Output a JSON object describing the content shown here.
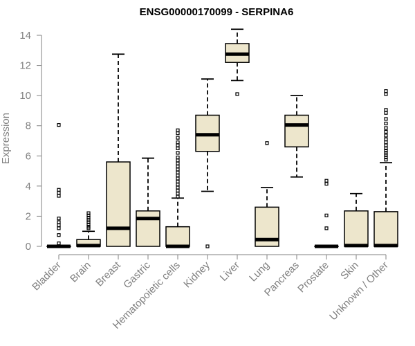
{
  "chart_data": {
    "type": "boxplot",
    "title": "ENSG00000170099 - SERPINA6",
    "xlabel": "",
    "ylabel": "Expression",
    "ylim": [
      0,
      14.5
    ],
    "yticks": [
      0,
      2,
      4,
      6,
      8,
      10,
      12,
      14
    ],
    "box_color": "#ede6cc",
    "categories": [
      "Bladder",
      "Brain",
      "Breast",
      "Gastric",
      "Hematopoietic cells",
      "Kidney",
      "Liver",
      "Lung",
      "Pancreas",
      "Prostate",
      "Skin",
      "Unknown / Other"
    ],
    "boxes": [
      {
        "name": "Bladder",
        "min": 0,
        "q1": 0,
        "median": 0,
        "q3": 0,
        "max": 0,
        "outliers": [
          8.05,
          3.75,
          3.55,
          3.35,
          1.85,
          1.6,
          1.4,
          1.2,
          0.75,
          0.2
        ]
      },
      {
        "name": "Brain",
        "min": 0,
        "q1": 0,
        "median": 0.05,
        "q3": 0.45,
        "max": 1.0,
        "outliers": [
          2.2,
          2.05,
          1.9,
          1.75,
          1.6,
          1.45,
          1.3,
          1.2
        ]
      },
      {
        "name": "Breast",
        "min": 0,
        "q1": 0,
        "median": 1.2,
        "q3": 5.6,
        "max": 12.75,
        "outliers": []
      },
      {
        "name": "Gastric",
        "min": 0,
        "q1": 0,
        "median": 1.85,
        "q3": 2.35,
        "max": 5.85,
        "outliers": []
      },
      {
        "name": "Hematopoietic cells",
        "min": 0,
        "q1": 0,
        "median": 0,
        "q3": 1.3,
        "max": 3.2,
        "outliers": [
          7.7,
          7.5,
          7.2,
          6.9,
          6.7,
          6.5,
          6.2,
          5.9,
          5.7,
          5.5,
          5.3,
          5.1,
          4.9,
          4.7,
          4.5,
          4.3,
          4.1,
          3.9,
          3.7,
          3.5,
          3.3
        ]
      },
      {
        "name": "Kidney",
        "min": 3.65,
        "q1": 6.3,
        "median": 7.4,
        "q3": 8.7,
        "max": 11.1,
        "outliers": [
          0
        ]
      },
      {
        "name": "Liver",
        "min": 11.0,
        "q1": 12.2,
        "median": 12.75,
        "q3": 13.45,
        "max": 14.4,
        "outliers": [
          10.1
        ]
      },
      {
        "name": "Lung",
        "min": 0,
        "q1": 0,
        "median": 0.45,
        "q3": 2.6,
        "max": 3.9,
        "outliers": [
          6.85
        ]
      },
      {
        "name": "Pancreas",
        "min": 4.6,
        "q1": 6.6,
        "median": 8.05,
        "q3": 8.7,
        "max": 10.0,
        "outliers": []
      },
      {
        "name": "Prostate",
        "min": 0,
        "q1": 0,
        "median": 0,
        "q3": 0,
        "max": 0,
        "outliers": [
          4.35,
          4.15,
          2.05,
          1.2
        ]
      },
      {
        "name": "Skin",
        "min": 0,
        "q1": 0,
        "median": 0.05,
        "q3": 2.35,
        "max": 3.5,
        "outliers": []
      },
      {
        "name": "Unknown / Other",
        "min": 0,
        "q1": 0,
        "median": 0.05,
        "q3": 2.3,
        "max": 5.55,
        "outliers": [
          10.3,
          10.1,
          9.05,
          8.85,
          8.45,
          8.15,
          7.85,
          7.6,
          7.35,
          7.1,
          6.9,
          6.7,
          6.5,
          6.35,
          6.2,
          6.05,
          5.9,
          5.75
        ]
      }
    ]
  }
}
